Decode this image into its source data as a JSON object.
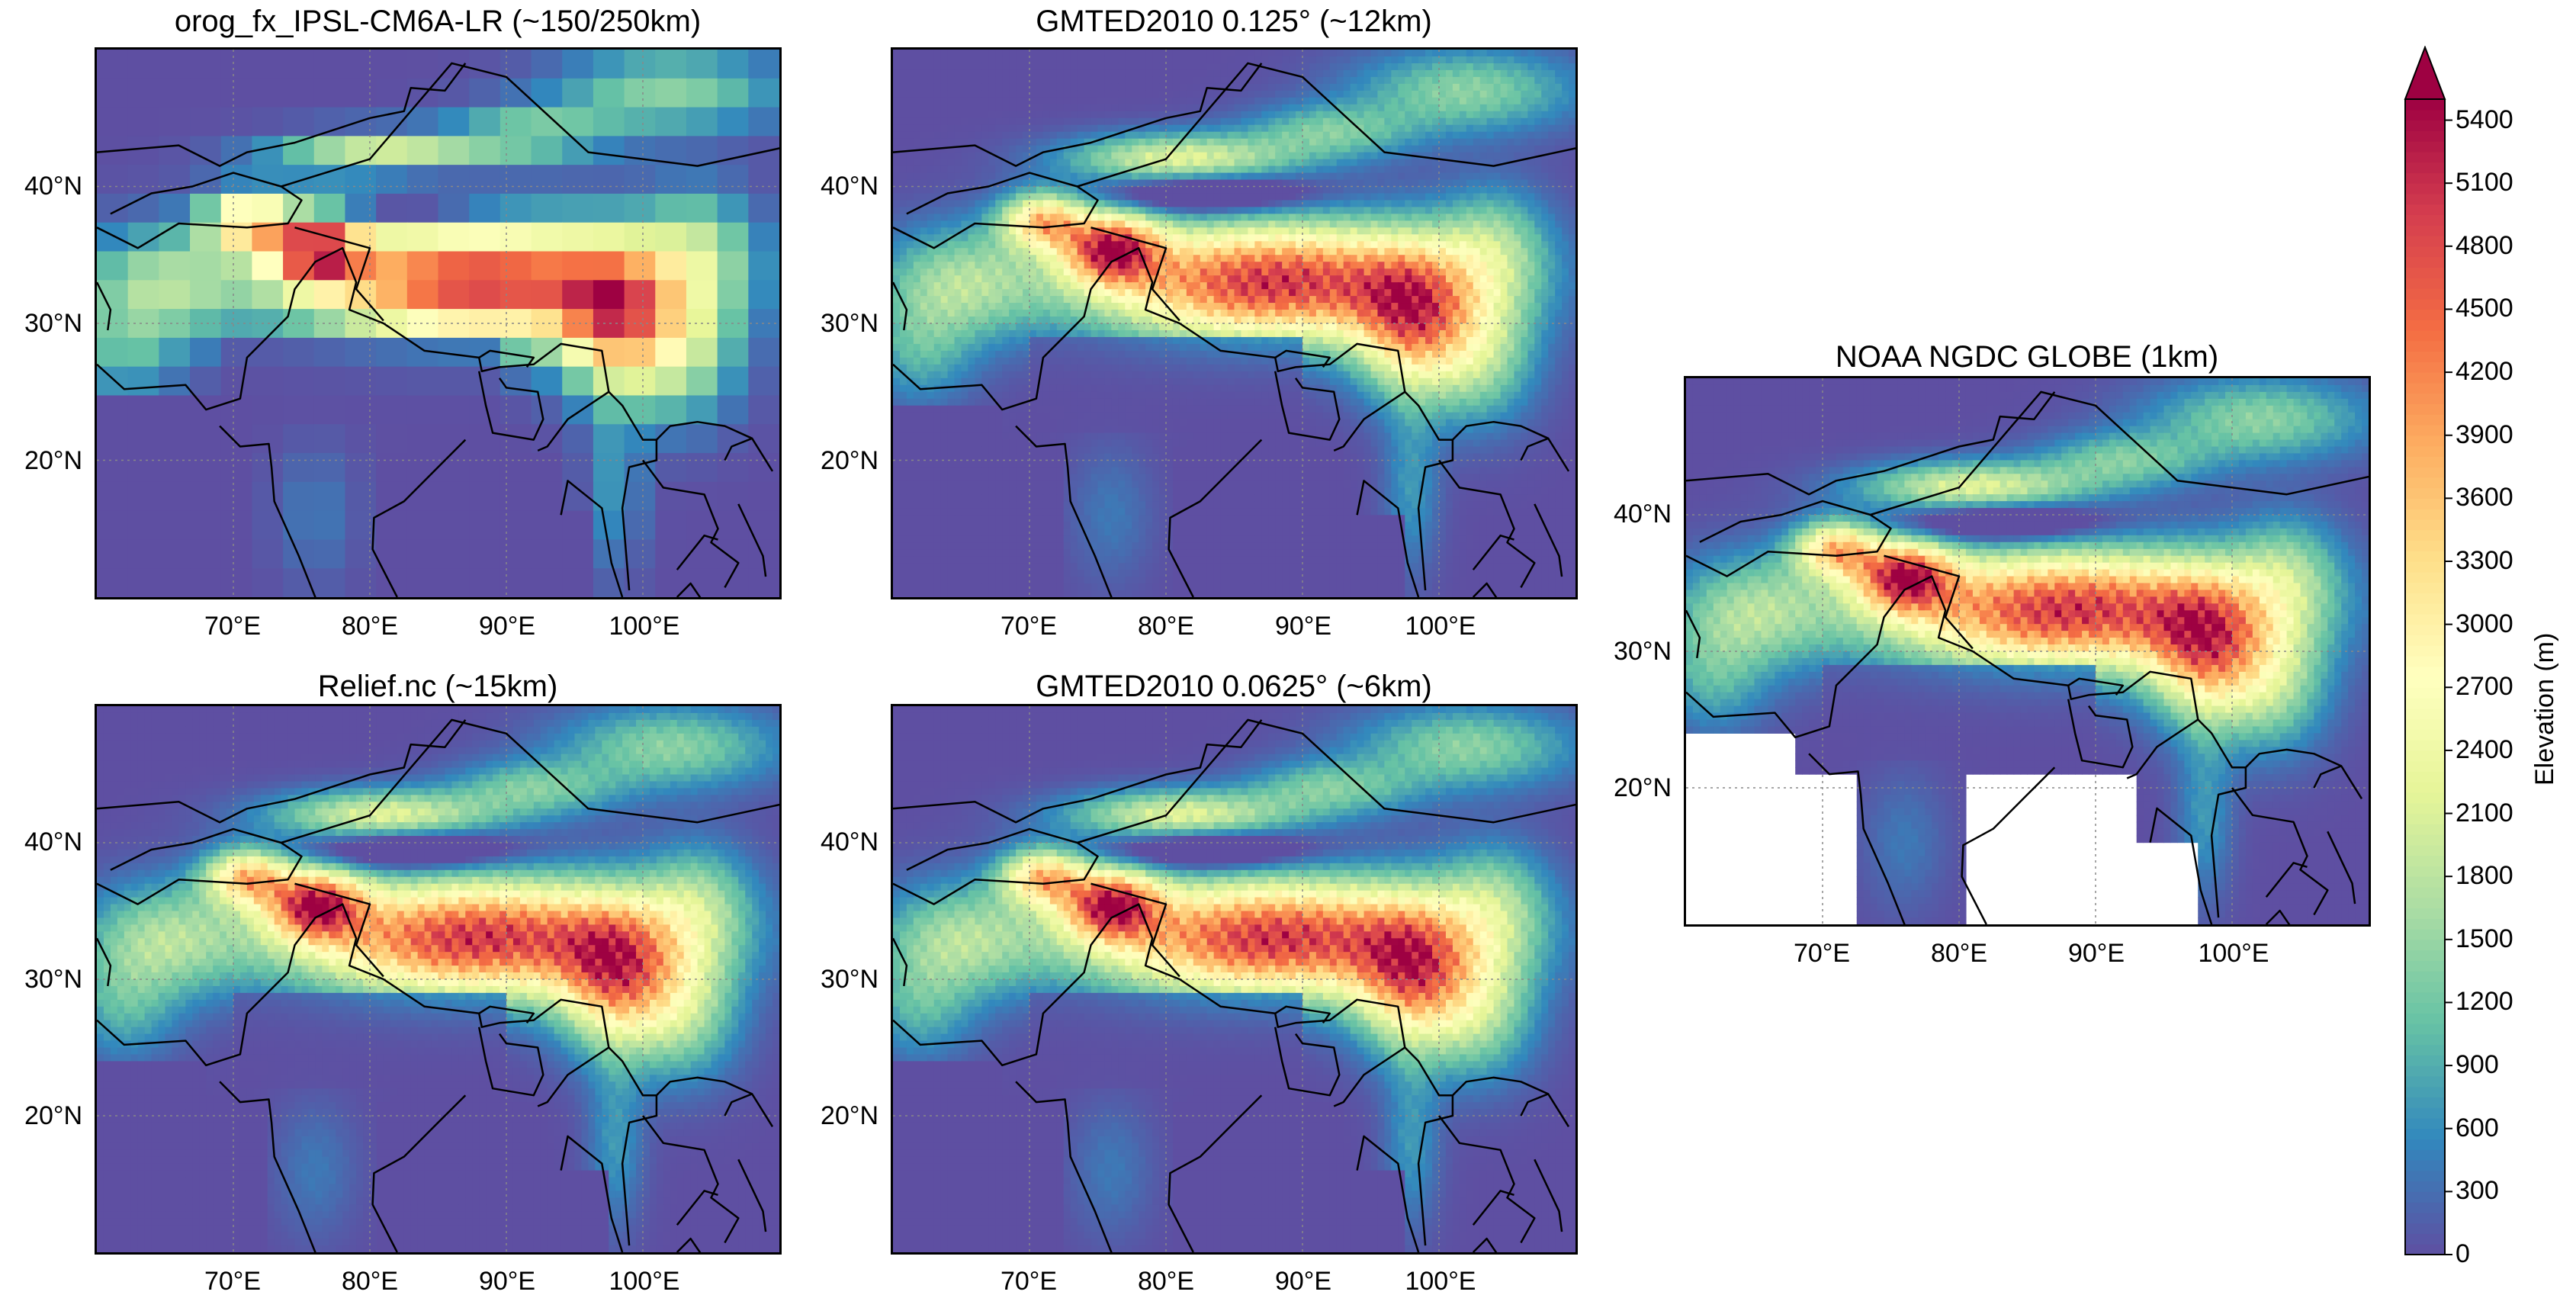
{
  "panels": [
    {
      "id": "p1",
      "title": "orog_fx_IPSL-CM6A-LR (~150/250km)",
      "style": "coarse"
    },
    {
      "id": "p2",
      "title": "GMTED2010 0.125° (~12km)",
      "style": "fine"
    },
    {
      "id": "p3",
      "title": "Relief.nc (~15km)",
      "style": "fine"
    },
    {
      "id": "p4",
      "title": "GMTED2010 0.0625° (~6km)",
      "style": "fine"
    },
    {
      "id": "p5",
      "title": "NOAA NGDC GLOBE (1km)",
      "style": "globe"
    }
  ],
  "axes": {
    "lat_labels": [
      "40°N",
      "30°N",
      "20°N"
    ],
    "lon_labels": [
      "70°E",
      "80°E",
      "90°E",
      "100°E"
    ],
    "lon_range": [
      60,
      110
    ],
    "lat_range": [
      10,
      50
    ]
  },
  "colorbar": {
    "label": "Elevation (m)",
    "min": 0,
    "max": 5500,
    "ticks": [
      "5400",
      "5100",
      "4800",
      "4500",
      "4200",
      "3900",
      "3600",
      "3300",
      "3000",
      "2700",
      "2400",
      "2100",
      "1800",
      "1500",
      "1200",
      "900",
      "600",
      "300",
      "0"
    ],
    "extend": "max",
    "colormap": "Spectral_r",
    "colors": [
      "#5e4fa2",
      "#3288bd",
      "#66c2a5",
      "#abdda4",
      "#e6f598",
      "#ffffbf",
      "#fee08b",
      "#fdae61",
      "#f46d43",
      "#d53e4f",
      "#9e0142"
    ]
  }
}
